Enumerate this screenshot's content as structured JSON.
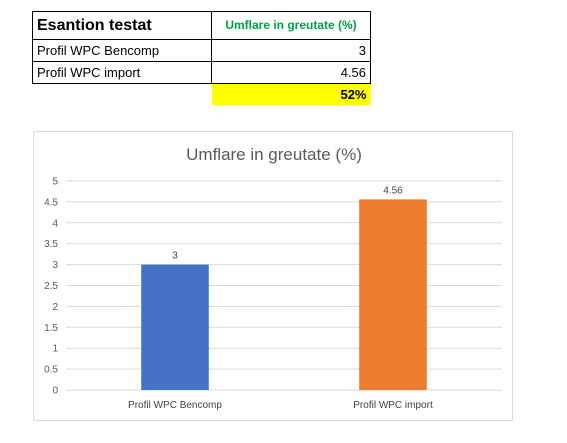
{
  "table": {
    "header": {
      "label": "Esantion testat",
      "value": "Umflare in greutate (%)"
    },
    "rows": [
      {
        "label": "Profil WPC Bencomp",
        "value": "3"
      },
      {
        "label": "Profil WPC import",
        "value": "4.56"
      }
    ],
    "highlight": {
      "value": "52%",
      "color": "#ffff00"
    },
    "header_value_color": "#00a14b"
  },
  "chart_data": {
    "type": "bar",
    "title": "Umflare in greutate (%)",
    "categories": [
      "Profil WPC Bencomp",
      "Profil WPC import"
    ],
    "values": [
      3,
      4.56
    ],
    "data_labels": [
      "3",
      "4.56"
    ],
    "colors": [
      "#4472c4",
      "#ed7d31"
    ],
    "ylim": [
      0,
      5
    ],
    "yticks": [
      "0",
      "0.5",
      "1",
      "1.5",
      "2",
      "2.5",
      "3",
      "3.5",
      "4",
      "4.5",
      "5"
    ],
    "grid": true,
    "legend": "none"
  }
}
